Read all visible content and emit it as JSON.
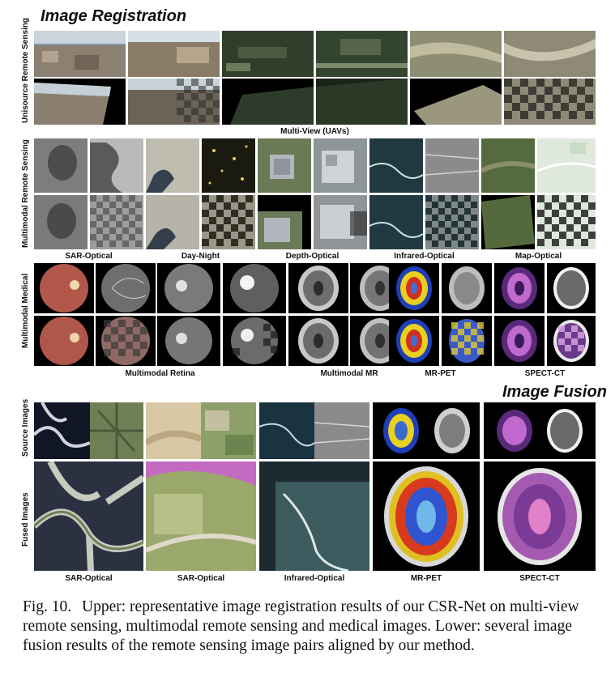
{
  "registration": {
    "title": "Image Registration",
    "groups": [
      {
        "label": "Unisource Remote Sensing",
        "caption": "Multi-View (UAVs)"
      },
      {
        "label": "Multimodal Remote Sensing",
        "captions": [
          "SAR-Optical",
          "Day-Night",
          "Depth-Optical",
          "Infrared-Optical",
          "Map-Optical"
        ]
      },
      {
        "label": "Multimodal Medical",
        "captions": [
          "Multimodal Retina",
          "Multimodal MR",
          "MR-PET",
          "SPECT-CT"
        ]
      }
    ]
  },
  "fusion": {
    "title": "Image Fusion",
    "row_labels": [
      "Source Images",
      "Fused Images"
    ],
    "captions": [
      "SAR-Optical",
      "SAR-Optical",
      "Infrared-Optical",
      "MR-PET",
      "SPECT-CT"
    ]
  },
  "caption": {
    "lead": "Fig. 10.",
    "text": "Upper: representative image registration results of our CSR-Net on multi-view remote sensing, multimodal remote sensing and medical images. Lower: several image fusion results of the remote sensing image pairs aligned by our method."
  }
}
